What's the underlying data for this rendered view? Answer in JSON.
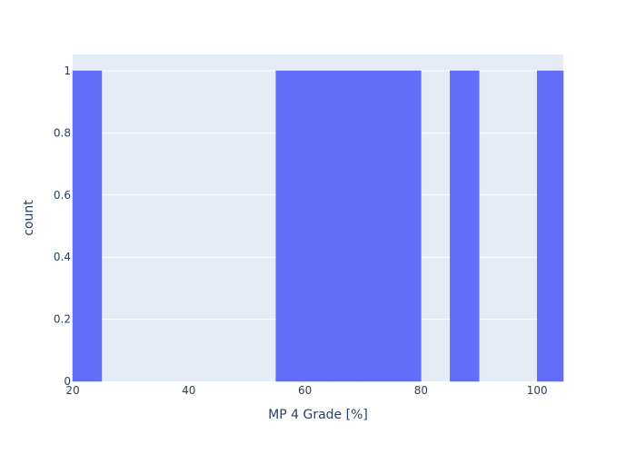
{
  "chart_data": {
    "type": "bar",
    "bins": [
      {
        "start": 20,
        "end": 25,
        "count": 1
      },
      {
        "start": 25,
        "end": 30,
        "count": 0
      },
      {
        "start": 30,
        "end": 35,
        "count": 0
      },
      {
        "start": 35,
        "end": 40,
        "count": 0
      },
      {
        "start": 40,
        "end": 45,
        "count": 0
      },
      {
        "start": 45,
        "end": 50,
        "count": 0
      },
      {
        "start": 50,
        "end": 55,
        "count": 0
      },
      {
        "start": 55,
        "end": 60,
        "count": 1
      },
      {
        "start": 60,
        "end": 65,
        "count": 1
      },
      {
        "start": 65,
        "end": 70,
        "count": 1
      },
      {
        "start": 70,
        "end": 75,
        "count": 1
      },
      {
        "start": 75,
        "end": 80,
        "count": 1
      },
      {
        "start": 80,
        "end": 85,
        "count": 0
      },
      {
        "start": 85,
        "end": 90,
        "count": 1
      },
      {
        "start": 90,
        "end": 95,
        "count": 0
      },
      {
        "start": 95,
        "end": 100,
        "count": 0
      },
      {
        "start": 100,
        "end": 105,
        "count": 1
      }
    ],
    "title": "",
    "xlabel": "MP 4 Grade [%]",
    "ylabel": "count",
    "xlim": [
      20,
      104.5
    ],
    "ylim": [
      0,
      1.0526
    ],
    "xticks": [
      20,
      40,
      60,
      80,
      100
    ],
    "xtick_labels": [
      "20",
      "40",
      "60",
      "80",
      "100"
    ],
    "yticks": [
      0,
      0.2,
      0.4,
      0.6,
      0.8,
      1
    ],
    "ytick_labels": [
      "0",
      "0.2",
      "0.4",
      "0.6",
      "0.8",
      "1"
    ],
    "grid": true,
    "legend": "none",
    "colors": {
      "bar": "#636efa",
      "plot_background": "#e5ecf6",
      "grid": "#ffffff",
      "text": "#2a3f5f"
    }
  }
}
